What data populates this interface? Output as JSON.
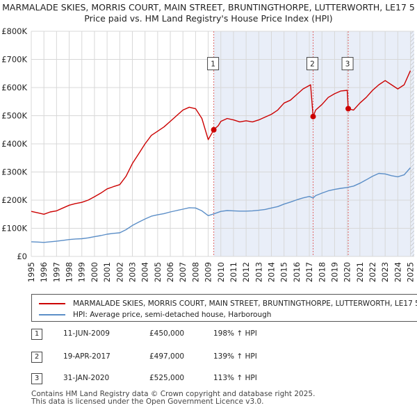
{
  "header": {
    "title_line1": "MARMALADE SKIES, MORRIS COURT, MAIN STREET, BRUNTINGTHORPE, LUTTERWORTH, LE17 5",
    "title_line2": "Price paid vs. HM Land Registry's House Price Index (HPI)"
  },
  "colors": {
    "price": "#cc0000",
    "hpi": "#5b8ec7",
    "shade": "#e9eef8",
    "grid": "#d8d8d8",
    "vline": "#e06666"
  },
  "chart_data": {
    "type": "line",
    "title": "Price paid vs. HM Land Registry's House Price Index (HPI)",
    "xlabel": "",
    "ylabel": "",
    "xlim": [
      1995,
      2025.3
    ],
    "ylim": [
      0,
      800000
    ],
    "y_ticks": [
      0,
      100000,
      200000,
      300000,
      400000,
      500000,
      600000,
      700000,
      800000
    ],
    "y_tick_labels": [
      "£0",
      "£100K",
      "£200K",
      "£300K",
      "£400K",
      "£500K",
      "£600K",
      "£700K",
      "£800K"
    ],
    "x_ticks": [
      1995,
      1996,
      1997,
      1998,
      1999,
      2000,
      2001,
      2002,
      2003,
      2004,
      2005,
      2006,
      2007,
      2008,
      2009,
      2010,
      2011,
      2012,
      2013,
      2014,
      2015,
      2016,
      2017,
      2018,
      2019,
      2020,
      2021,
      2022,
      2023,
      2024,
      2025
    ],
    "x_tick_labels": [
      "1995",
      "1996",
      "1997",
      "1998",
      "1999",
      "2000",
      "2001",
      "2002",
      "2003",
      "2004",
      "2005",
      "2006",
      "2007",
      "2008",
      "2009",
      "2010",
      "2011",
      "2012",
      "2013",
      "2014",
      "2015",
      "2016",
      "2017",
      "2018",
      "2019",
      "2020",
      "2021",
      "2022",
      "2023",
      "2024",
      "2025"
    ],
    "shade_from": 2009.44,
    "hatch_from": 2025.0,
    "series": [
      {
        "name": "MARMALADE SKIES, MORRIS COURT, MAIN STREET, BRUNTINGTHORPE, LUTTERWORTH, LE17 5",
        "color": "#cc0000",
        "points": [
          [
            1995,
            160000
          ],
          [
            1995.5,
            155000
          ],
          [
            1996,
            150000
          ],
          [
            1996.5,
            158000
          ],
          [
            1997,
            162000
          ],
          [
            1997.5,
            172000
          ],
          [
            1998,
            182000
          ],
          [
            1998.5,
            188000
          ],
          [
            1999,
            192000
          ],
          [
            1999.5,
            200000
          ],
          [
            2000,
            212000
          ],
          [
            2000.5,
            225000
          ],
          [
            2001,
            240000
          ],
          [
            2001.5,
            248000
          ],
          [
            2002,
            255000
          ],
          [
            2002.5,
            285000
          ],
          [
            2003,
            330000
          ],
          [
            2003.5,
            365000
          ],
          [
            2004,
            400000
          ],
          [
            2004.5,
            430000
          ],
          [
            2005,
            445000
          ],
          [
            2005.5,
            460000
          ],
          [
            2006,
            480000
          ],
          [
            2006.5,
            500000
          ],
          [
            2007,
            520000
          ],
          [
            2007.5,
            530000
          ],
          [
            2008,
            525000
          ],
          [
            2008.5,
            490000
          ],
          [
            2009,
            415000
          ],
          [
            2009.44,
            450000
          ],
          [
            2009.8,
            465000
          ],
          [
            2010,
            480000
          ],
          [
            2010.5,
            490000
          ],
          [
            2011,
            485000
          ],
          [
            2011.5,
            478000
          ],
          [
            2012,
            482000
          ],
          [
            2012.5,
            478000
          ],
          [
            2013,
            485000
          ],
          [
            2013.5,
            495000
          ],
          [
            2014,
            505000
          ],
          [
            2014.5,
            520000
          ],
          [
            2015,
            545000
          ],
          [
            2015.5,
            555000
          ],
          [
            2016,
            575000
          ],
          [
            2016.5,
            595000
          ],
          [
            2017.1,
            610000
          ],
          [
            2017.3,
            497000
          ],
          [
            2017.5,
            520000
          ],
          [
            2018,
            540000
          ],
          [
            2018.5,
            565000
          ],
          [
            2019,
            578000
          ],
          [
            2019.5,
            588000
          ],
          [
            2020,
            590000
          ],
          [
            2020.08,
            525000
          ],
          [
            2020.5,
            520000
          ],
          [
            2021,
            545000
          ],
          [
            2021.5,
            565000
          ],
          [
            2022,
            590000
          ],
          [
            2022.5,
            610000
          ],
          [
            2023,
            625000
          ],
          [
            2023.5,
            610000
          ],
          [
            2024,
            595000
          ],
          [
            2024.5,
            610000
          ],
          [
            2025,
            660000
          ]
        ]
      },
      {
        "name": "HPI: Average price, semi-detached house, Harborough",
        "color": "#5b8ec7",
        "points": [
          [
            1995,
            52000
          ],
          [
            1995.5,
            51000
          ],
          [
            1996,
            50000
          ],
          [
            1996.5,
            52000
          ],
          [
            1997,
            54000
          ],
          [
            1997.5,
            57000
          ],
          [
            1998,
            60000
          ],
          [
            1998.5,
            62000
          ],
          [
            1999,
            63000
          ],
          [
            1999.5,
            66000
          ],
          [
            2000,
            70000
          ],
          [
            2000.5,
            74000
          ],
          [
            2001,
            79000
          ],
          [
            2001.5,
            82000
          ],
          [
            2002,
            84000
          ],
          [
            2002.5,
            95000
          ],
          [
            2003,
            110000
          ],
          [
            2003.5,
            122000
          ],
          [
            2004,
            133000
          ],
          [
            2004.5,
            143000
          ],
          [
            2005,
            148000
          ],
          [
            2005.5,
            152000
          ],
          [
            2006,
            158000
          ],
          [
            2006.5,
            163000
          ],
          [
            2007,
            168000
          ],
          [
            2007.5,
            173000
          ],
          [
            2008,
            172000
          ],
          [
            2008.5,
            162000
          ],
          [
            2009,
            145000
          ],
          [
            2009.44,
            151000
          ],
          [
            2010,
            160000
          ],
          [
            2010.5,
            163000
          ],
          [
            2011,
            162000
          ],
          [
            2011.5,
            161000
          ],
          [
            2012,
            161000
          ],
          [
            2012.5,
            162000
          ],
          [
            2013,
            164000
          ],
          [
            2013.5,
            167000
          ],
          [
            2014,
            172000
          ],
          [
            2014.5,
            177000
          ],
          [
            2015,
            186000
          ],
          [
            2015.5,
            193000
          ],
          [
            2016,
            201000
          ],
          [
            2016.5,
            208000
          ],
          [
            2017,
            213000
          ],
          [
            2017.3,
            208000
          ],
          [
            2017.5,
            216000
          ],
          [
            2018,
            225000
          ],
          [
            2018.5,
            233000
          ],
          [
            2019,
            238000
          ],
          [
            2019.5,
            242000
          ],
          [
            2020,
            245000
          ],
          [
            2020.08,
            246000
          ],
          [
            2020.5,
            250000
          ],
          [
            2021,
            260000
          ],
          [
            2021.5,
            272000
          ],
          [
            2022,
            285000
          ],
          [
            2022.5,
            295000
          ],
          [
            2023,
            293000
          ],
          [
            2023.5,
            287000
          ],
          [
            2024,
            283000
          ],
          [
            2024.5,
            290000
          ],
          [
            2025,
            315000
          ]
        ]
      }
    ],
    "markers": [
      {
        "id": "1",
        "x": 2009.44,
        "y": 450000
      },
      {
        "id": "2",
        "x": 2017.3,
        "y": 497000
      },
      {
        "id": "3",
        "x": 2020.08,
        "y": 525000
      }
    ],
    "marker_label_y": 685000
  },
  "legend": {
    "price_label": "MARMALADE SKIES, MORRIS COURT, MAIN STREET, BRUNTINGTHORPE, LUTTERWORTH, LE17 5",
    "hpi_label": "HPI: Average price, semi-detached house, Harborough"
  },
  "transactions": [
    {
      "id": "1",
      "date": "11-JUN-2009",
      "price": "£450,000",
      "hpi": "198% ↑ HPI"
    },
    {
      "id": "2",
      "date": "19-APR-2017",
      "price": "£497,000",
      "hpi": "139% ↑ HPI"
    },
    {
      "id": "3",
      "date": "31-JAN-2020",
      "price": "£525,000",
      "hpi": "113% ↑ HPI"
    }
  ],
  "footer": {
    "line1": "Contains HM Land Registry data © Crown copyright and database right 2025.",
    "line2": "This data is licensed under the Open Government Licence v3.0."
  }
}
